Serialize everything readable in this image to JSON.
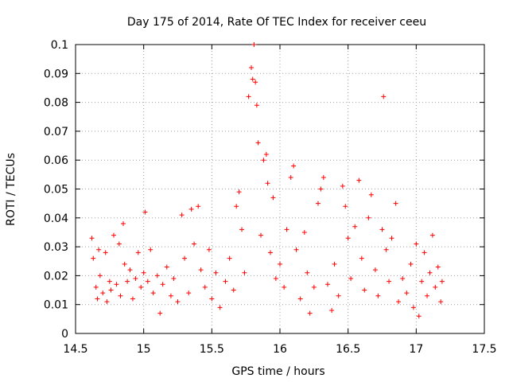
{
  "chart_data": {
    "type": "scatter",
    "title": "Day 175 of 2014, Rate Of TEC Index for receiver ceeu",
    "xlabel": "GPS time / hours",
    "ylabel": "ROTI / TECUs",
    "xlim": [
      14.5,
      17.5
    ],
    "ylim": [
      0,
      0.1
    ],
    "xticks": [
      14.5,
      15,
      15.5,
      16,
      16.5,
      17,
      17.5
    ],
    "xtick_labels": [
      "14.5",
      "15",
      "15.5",
      "16",
      "16.5",
      "17",
      "17.5"
    ],
    "yticks": [
      0,
      0.01,
      0.02,
      0.03,
      0.04,
      0.05,
      0.06,
      0.07,
      0.08,
      0.09,
      0.1
    ],
    "ytick_labels": [
      "0",
      "0.01",
      "0.02",
      "0.03",
      "0.04",
      "0.05",
      "0.06",
      "0.07",
      "0.08",
      "0.09",
      "0.1"
    ],
    "grid": true,
    "marker": "+",
    "color": "#ff0000",
    "series": [
      {
        "name": "ROTI",
        "points": [
          [
            14.62,
            0.033
          ],
          [
            14.63,
            0.026
          ],
          [
            14.65,
            0.016
          ],
          [
            14.66,
            0.012
          ],
          [
            14.67,
            0.029
          ],
          [
            14.68,
            0.02
          ],
          [
            14.7,
            0.014
          ],
          [
            14.72,
            0.028
          ],
          [
            14.73,
            0.011
          ],
          [
            14.75,
            0.018
          ],
          [
            14.76,
            0.015
          ],
          [
            14.78,
            0.034
          ],
          [
            14.8,
            0.017
          ],
          [
            14.82,
            0.031
          ],
          [
            14.83,
            0.013
          ],
          [
            14.85,
            0.038
          ],
          [
            14.86,
            0.024
          ],
          [
            14.88,
            0.018
          ],
          [
            14.9,
            0.022
          ],
          [
            14.92,
            0.012
          ],
          [
            14.94,
            0.019
          ],
          [
            14.96,
            0.028
          ],
          [
            14.98,
            0.016
          ],
          [
            15.0,
            0.021
          ],
          [
            15.01,
            0.042
          ],
          [
            15.03,
            0.018
          ],
          [
            15.05,
            0.029
          ],
          [
            15.07,
            0.014
          ],
          [
            15.1,
            0.02
          ],
          [
            15.12,
            0.007
          ],
          [
            15.14,
            0.017
          ],
          [
            15.17,
            0.023
          ],
          [
            15.2,
            0.013
          ],
          [
            15.22,
            0.019
          ],
          [
            15.25,
            0.011
          ],
          [
            15.28,
            0.041
          ],
          [
            15.3,
            0.026
          ],
          [
            15.33,
            0.014
          ],
          [
            15.35,
            0.043
          ],
          [
            15.37,
            0.031
          ],
          [
            15.4,
            0.044
          ],
          [
            15.42,
            0.022
          ],
          [
            15.45,
            0.016
          ],
          [
            15.48,
            0.029
          ],
          [
            15.5,
            0.012
          ],
          [
            15.53,
            0.021
          ],
          [
            15.56,
            0.009
          ],
          [
            15.6,
            0.018
          ],
          [
            15.63,
            0.026
          ],
          [
            15.66,
            0.015
          ],
          [
            15.68,
            0.044
          ],
          [
            15.7,
            0.049
          ],
          [
            15.72,
            0.036
          ],
          [
            15.74,
            0.021
          ],
          [
            15.77,
            0.082
          ],
          [
            15.79,
            0.092
          ],
          [
            15.8,
            0.088
          ],
          [
            15.81,
            0.1
          ],
          [
            15.82,
            0.087
          ],
          [
            15.83,
            0.079
          ],
          [
            15.84,
            0.066
          ],
          [
            15.86,
            0.034
          ],
          [
            15.88,
            0.06
          ],
          [
            15.9,
            0.062
          ],
          [
            15.91,
            0.052
          ],
          [
            15.93,
            0.028
          ],
          [
            15.95,
            0.047
          ],
          [
            15.97,
            0.019
          ],
          [
            16.0,
            0.024
          ],
          [
            16.03,
            0.016
          ],
          [
            16.05,
            0.036
          ],
          [
            16.08,
            0.054
          ],
          [
            16.1,
            0.058
          ],
          [
            16.12,
            0.029
          ],
          [
            16.15,
            0.012
          ],
          [
            16.18,
            0.035
          ],
          [
            16.2,
            0.021
          ],
          [
            16.22,
            0.007
          ],
          [
            16.25,
            0.016
          ],
          [
            16.28,
            0.045
          ],
          [
            16.3,
            0.05
          ],
          [
            16.32,
            0.054
          ],
          [
            16.35,
            0.017
          ],
          [
            16.38,
            0.008
          ],
          [
            16.4,
            0.024
          ],
          [
            16.43,
            0.013
          ],
          [
            16.46,
            0.051
          ],
          [
            16.48,
            0.044
          ],
          [
            16.5,
            0.033
          ],
          [
            16.52,
            0.019
          ],
          [
            16.55,
            0.037
          ],
          [
            16.58,
            0.053
          ],
          [
            16.6,
            0.026
          ],
          [
            16.62,
            0.015
          ],
          [
            16.65,
            0.04
          ],
          [
            16.67,
            0.048
          ],
          [
            16.7,
            0.022
          ],
          [
            16.72,
            0.013
          ],
          [
            16.75,
            0.036
          ],
          [
            16.76,
            0.082
          ],
          [
            16.78,
            0.029
          ],
          [
            16.8,
            0.018
          ],
          [
            16.82,
            0.033
          ],
          [
            16.85,
            0.045
          ],
          [
            16.87,
            0.011
          ],
          [
            16.9,
            0.019
          ],
          [
            16.93,
            0.014
          ],
          [
            16.96,
            0.024
          ],
          [
            16.98,
            0.009
          ],
          [
            17.0,
            0.031
          ],
          [
            17.02,
            0.006
          ],
          [
            17.04,
            0.018
          ],
          [
            17.06,
            0.028
          ],
          [
            17.08,
            0.013
          ],
          [
            17.1,
            0.021
          ],
          [
            17.12,
            0.034
          ],
          [
            17.14,
            0.016
          ],
          [
            17.16,
            0.023
          ],
          [
            17.18,
            0.011
          ],
          [
            17.19,
            0.018
          ]
        ]
      }
    ]
  }
}
